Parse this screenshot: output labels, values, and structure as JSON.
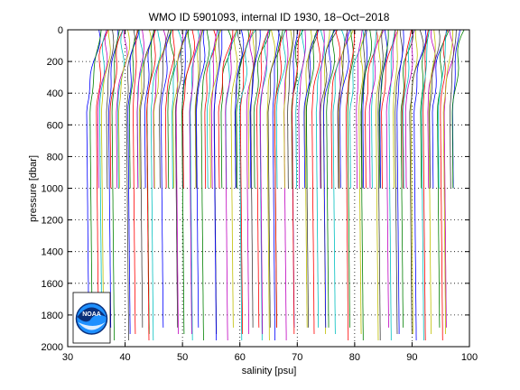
{
  "chart_data": {
    "type": "line",
    "title": "WMO ID 5901093, internal ID 1930, 18−Oct−2018",
    "xlabel": "salinity [psu]",
    "ylabel": "pressure [dbar]",
    "xlim": [
      30,
      100
    ],
    "ylim": [
      0,
      2000
    ],
    "y_reversed": true,
    "grid": true,
    "xticks": [
      30,
      40,
      50,
      60,
      70,
      80,
      90,
      100
    ],
    "yticks": [
      0,
      200,
      400,
      600,
      800,
      1000,
      1200,
      1400,
      1600,
      1800,
      2000
    ],
    "xtick_labels": [
      "30",
      "40",
      "50",
      "60",
      "70",
      "80",
      "90",
      "100"
    ],
    "ytick_labels": [
      "0",
      "200",
      "400",
      "600",
      "800",
      "1000",
      "1200",
      "1400",
      "1600",
      "1800",
      "2000"
    ],
    "profile_offsets_description": "waterfall of many salinity profiles, each offset by about 0.5 psu",
    "offset_start": 34.8,
    "offset_step": 0.45,
    "n_profiles": 142,
    "shallow_profile_fraction": 0.5,
    "shallow_max_pressure": 1000,
    "deep_max_pressure": 2000,
    "series_colors": [
      "#0000ff",
      "#008000",
      "#ff0000",
      "#00bfbf",
      "#bf00bf",
      "#bfbf00",
      "#404040"
    ],
    "logo": "noaa-logo",
    "logo_text": "NOAA"
  }
}
